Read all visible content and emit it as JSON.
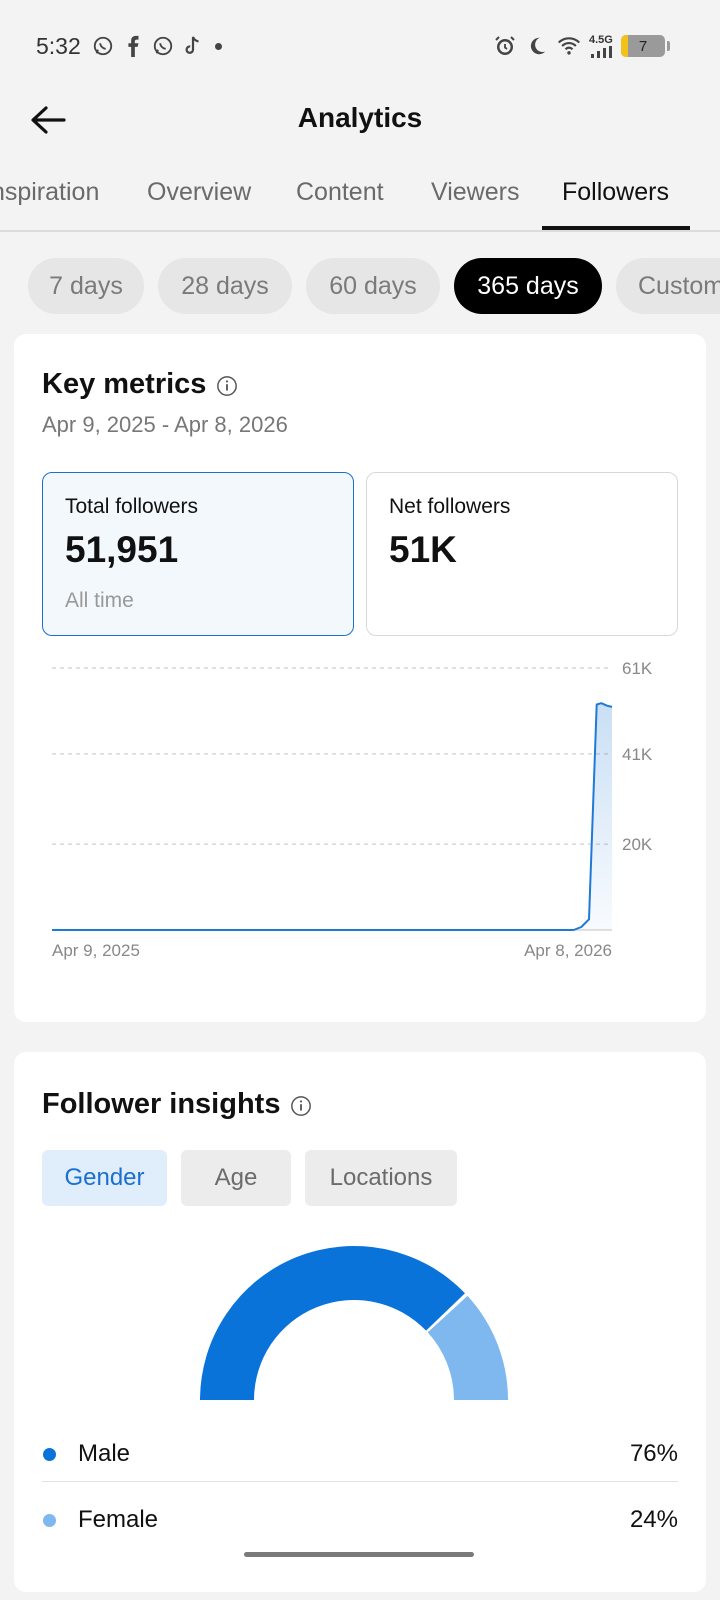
{
  "status_bar": {
    "time": "5:32",
    "network": "4.5G",
    "battery": "7",
    "notification_icons": [
      "whatsapp-icon",
      "facebook-icon",
      "whatsapp-icon",
      "tiktok-icon"
    ]
  },
  "header": {
    "title": "Analytics"
  },
  "tabs": [
    {
      "label": "Inspiration"
    },
    {
      "label": "Overview"
    },
    {
      "label": "Content"
    },
    {
      "label": "Viewers"
    },
    {
      "label": "Followers",
      "active": true
    }
  ],
  "ranges": [
    {
      "label": "7 days"
    },
    {
      "label": "28 days"
    },
    {
      "label": "60 days"
    },
    {
      "label": "365 days",
      "active": true
    },
    {
      "label": "Custom"
    }
  ],
  "key_metrics": {
    "title": "Key metrics",
    "date_range": "Apr 9, 2025 - Apr 8, 2026",
    "total": {
      "label": "Total followers",
      "value": "51,951",
      "sub": "All time"
    },
    "net": {
      "label": "Net followers",
      "value": "51K"
    }
  },
  "chart_data": {
    "type": "area",
    "x_labels": [
      "Apr 9, 2025",
      "Apr 8, 2026"
    ],
    "y_ticks": [
      "20K",
      "41K",
      "61K"
    ],
    "ylim": [
      0,
      61000
    ],
    "grid": true,
    "series": [
      {
        "x": [
          0,
          330,
          340,
          345,
          350,
          355,
          358,
          362,
          365
        ],
        "y": [
          0,
          0,
          0,
          700,
          2500,
          52500,
          52800,
          52200,
          51951
        ]
      }
    ]
  },
  "insights": {
    "title": "Follower insights",
    "segments": [
      {
        "label": "Gender",
        "active": true
      },
      {
        "label": "Age"
      },
      {
        "label": "Locations"
      }
    ],
    "gender": [
      {
        "name": "Male",
        "value": "76%",
        "percent": 76,
        "color": "#0a73da"
      },
      {
        "name": "Female",
        "value": "24%",
        "percent": 24,
        "color": "#7fb8ee"
      }
    ]
  },
  "colors": {
    "accent": "#1a6fd1",
    "line": "#1f7ad6",
    "male": "#0a73da",
    "female": "#7fb8ee"
  }
}
